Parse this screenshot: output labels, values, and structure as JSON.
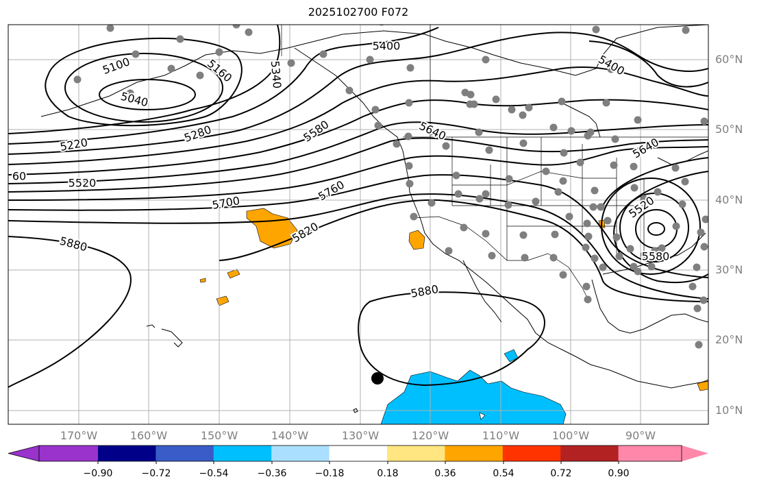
{
  "title": "2025102700 F072",
  "lon_labels": [
    "170°W",
    "160°W",
    "150°W",
    "140°W",
    "130°W",
    "120°W",
    "110°W",
    "100°W",
    "90°W"
  ],
  "lat_labels": [
    "60°N",
    "50°N",
    "40°N",
    "30°N",
    "20°N",
    "10°N"
  ],
  "contour_labels": [
    "5100",
    "5040",
    "5160",
    "5340",
    "5400",
    "5400",
    "5220",
    "5280",
    "5580",
    "5640",
    "5640",
    "60",
    "5520",
    "5700",
    "5760",
    "5820",
    "5880",
    "5520",
    "5580",
    "5880"
  ],
  "colorbar": {
    "tick_labels": [
      "−0.90",
      "−0.72",
      "−0.54",
      "−0.36",
      "−0.18",
      "0.18",
      "0.36",
      "0.54",
      "0.72",
      "0.90"
    ],
    "colors": [
      "#9933cc",
      "#000088",
      "#3a5cc8",
      "#00bfff",
      "#aadfff",
      "#ffffff",
      "#ffe680",
      "#ffa500",
      "#ff3300",
      "#b22222",
      "#ff88aa"
    ]
  },
  "colors": {
    "positive_fill": "#ffa500",
    "negative_fill": "#00bfff",
    "station": "#7f7f7f",
    "grid": "#b0b0b0",
    "contour": "#000000"
  }
}
